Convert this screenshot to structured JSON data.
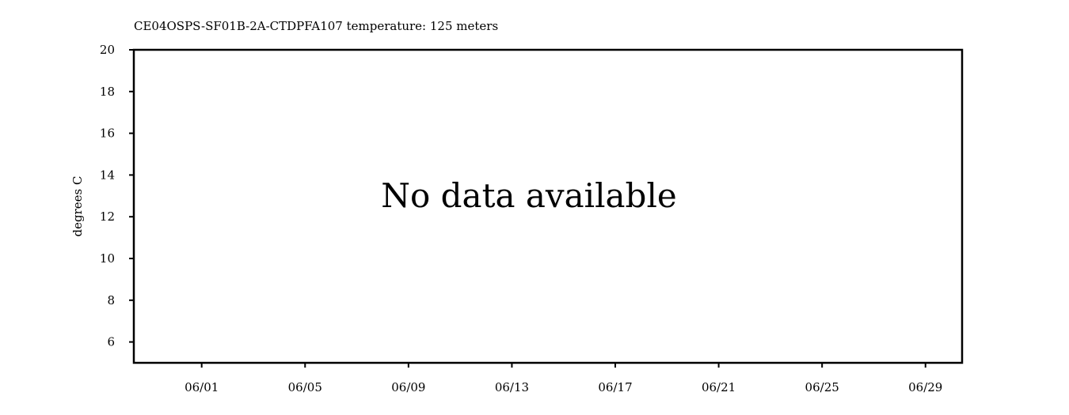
{
  "chart_data": {
    "type": "line",
    "title": "CE04OSPS-SF01B-2A-CTDPFA107 temperature: 125 meters",
    "xlabel": "",
    "ylabel": "degrees C",
    "annotation": "No data available",
    "xlim": [
      "2023-05-29T09:00",
      "2023-06-30T10:00"
    ],
    "ylim": [
      5,
      20
    ],
    "xticks": [
      {
        "value": "2023-06-01",
        "label": "06/01"
      },
      {
        "value": "2023-06-05",
        "label": "06/05"
      },
      {
        "value": "2023-06-09",
        "label": "06/09"
      },
      {
        "value": "2023-06-13",
        "label": "06/13"
      },
      {
        "value": "2023-06-17",
        "label": "06/17"
      },
      {
        "value": "2023-06-21",
        "label": "06/21"
      },
      {
        "value": "2023-06-25",
        "label": "06/25"
      },
      {
        "value": "2023-06-29",
        "label": "06/29"
      }
    ],
    "yticks": [
      {
        "value": 6,
        "label": "6"
      },
      {
        "value": 8,
        "label": "8"
      },
      {
        "value": 10,
        "label": "10"
      },
      {
        "value": 12,
        "label": "12"
      },
      {
        "value": 14,
        "label": "14"
      },
      {
        "value": 16,
        "label": "16"
      },
      {
        "value": 18,
        "label": "18"
      },
      {
        "value": 20,
        "label": "20"
      }
    ],
    "series": [],
    "grid": false,
    "legend": "none"
  }
}
